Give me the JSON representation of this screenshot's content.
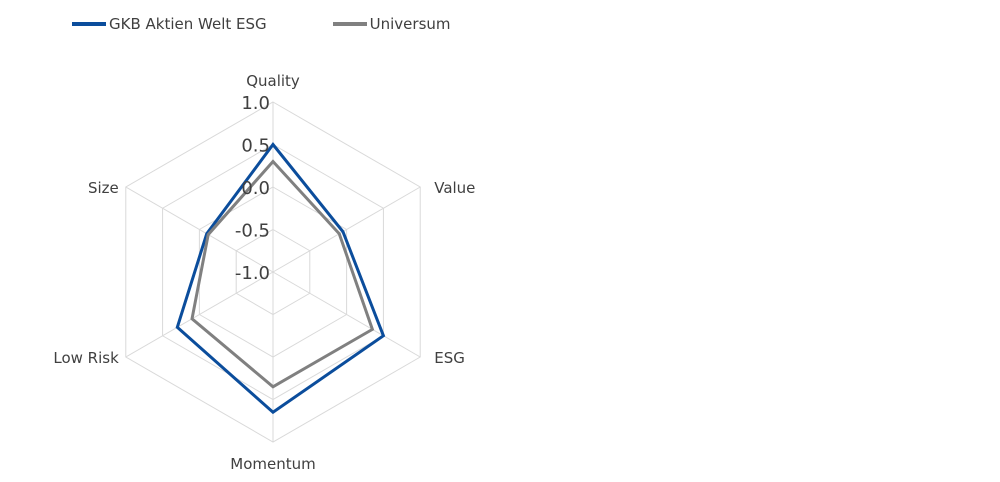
{
  "chart_data": {
    "type": "radar",
    "title": "",
    "axes": [
      "Quality",
      "Value",
      "ESG",
      "Momentum",
      "Low Risk",
      "Size"
    ],
    "rlim": [
      -1.0,
      1.0
    ],
    "ticks": [
      "1.0",
      "0.5",
      "0.0",
      "-0.5",
      "-1.0"
    ],
    "tick_values": [
      1.0,
      0.5,
      0.0,
      -0.5,
      -1.0
    ],
    "legend_position": "top-left",
    "grid": true,
    "series": [
      {
        "name": "GKB Aktien Welt ESG",
        "color": "#0B4D9C",
        "values": [
          0.5,
          -0.05,
          0.5,
          0.65,
          0.3,
          -0.1
        ]
      },
      {
        "name": "Universum",
        "color": "#808080",
        "values": [
          0.3,
          -0.1,
          0.35,
          0.35,
          0.1,
          -0.12
        ]
      }
    ]
  }
}
